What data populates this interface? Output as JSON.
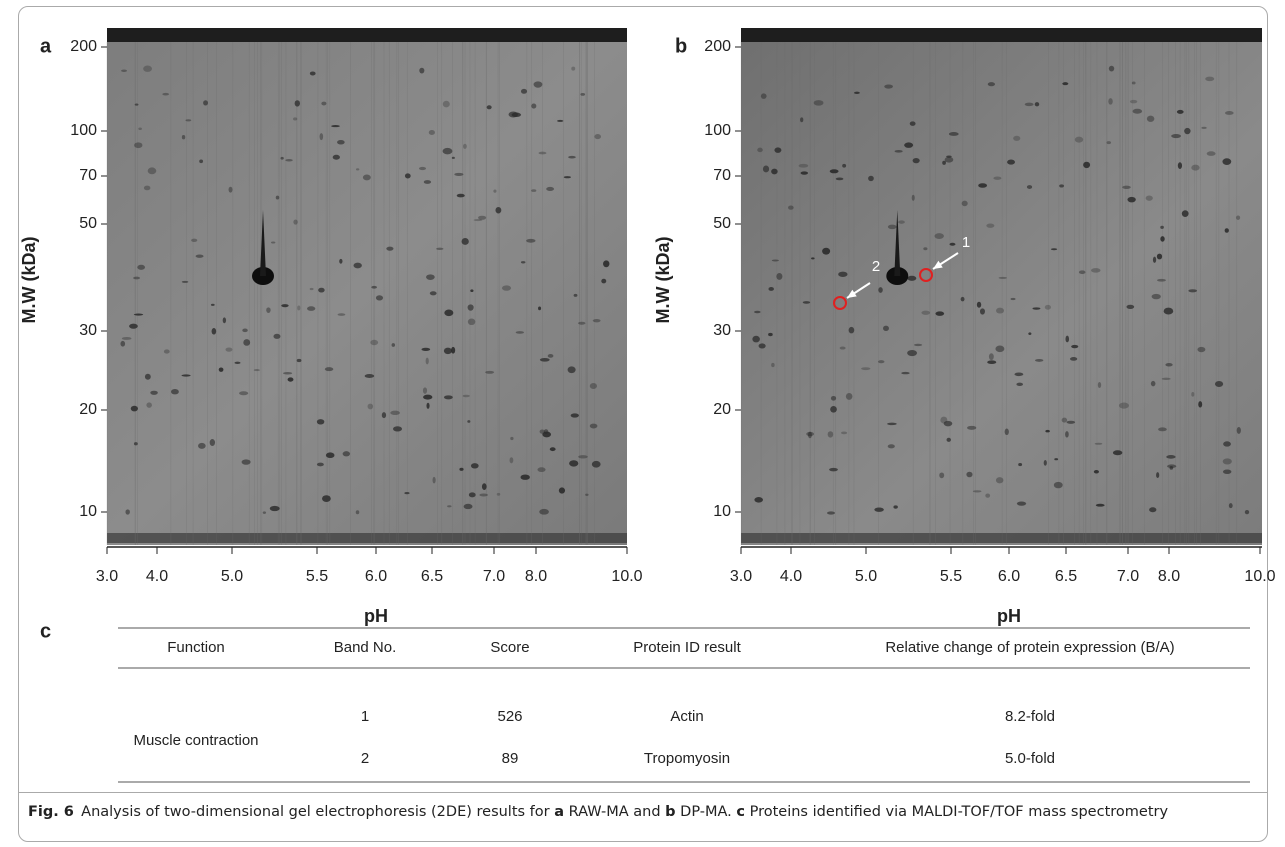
{
  "panels": [
    {
      "label": "a",
      "y_axis_label": "M.W (kDa)",
      "x_axis_label": "pH",
      "yticks": [
        "200",
        "100",
        "70",
        "50",
        "30",
        "20",
        "10"
      ],
      "xticks": [
        "3.0",
        "4.0",
        "5.0",
        "5.5",
        "6.0",
        "6.5",
        "7.0",
        "8.0",
        "10.0"
      ]
    },
    {
      "label": "b",
      "y_axis_label": "M.W (kDa)",
      "x_axis_label": "pH",
      "yticks": [
        "200",
        "100",
        "70",
        "50",
        "30",
        "20",
        "10"
      ],
      "xticks": [
        "3.0",
        "4.0",
        "5.0",
        "5.5",
        "6.0",
        "6.5",
        "7.0",
        "8.0",
        "10.0"
      ],
      "annotations": [
        "1",
        "2"
      ]
    }
  ],
  "table": {
    "label": "c",
    "header": [
      "Function",
      "Band No.",
      "Score",
      "Protein ID result",
      "Relative change of protein expression (B/A)"
    ],
    "groups": [
      {
        "function": "Muscle contraction",
        "rows": [
          [
            "1",
            "526",
            "Actin",
            "8.2-fold"
          ],
          [
            "2",
            "89",
            "Tropomyosin",
            "5.0-fold"
          ]
        ]
      }
    ]
  },
  "caption": {
    "label": "Fig. 6",
    "parts": [
      {
        "text": "Analysis of two-dimensional gel electrophoresis (2DE) results for ",
        "bold": false
      },
      {
        "text": "a",
        "bold": true
      },
      {
        "text": " RAW-MA and ",
        "bold": false
      },
      {
        "text": "b",
        "bold": true
      },
      {
        "text": " DP-MA. ",
        "bold": false
      },
      {
        "text": "c",
        "bold": true
      },
      {
        "text": " Proteins identified via MALDI-TOF/TOF mass spectrometry",
        "bold": false
      }
    ]
  }
}
